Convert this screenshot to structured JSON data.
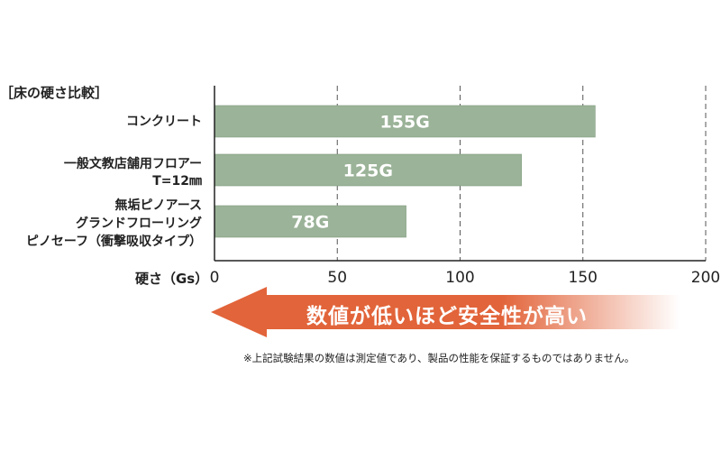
{
  "chart_data": {
    "type": "bar",
    "orientation": "horizontal",
    "title": "［床の硬さ比較］",
    "categories": [
      [
        "コンクリート"
      ],
      [
        "一般文教店舗用フロアー",
        "T=12㎜"
      ],
      [
        "無垢ピノアース",
        "グランドフローリング",
        "ピノセーフ（衝撃吸収タイプ）"
      ]
    ],
    "values": [
      155,
      125,
      78
    ],
    "value_labels": [
      "155G",
      "125G",
      "78G"
    ],
    "xlabel": "硬さ（Gs）",
    "xlim": [
      0,
      200
    ],
    "ticks": [
      0,
      50,
      100,
      150,
      200
    ],
    "grid": true,
    "bar_color": "#9bb398"
  },
  "arrow": {
    "text": "数値が低いほど安全性が高い",
    "color": "#e2643a"
  },
  "footnote": "※上記試験結果の数値は測定値であり、製品の性能を保証するものではありません。"
}
